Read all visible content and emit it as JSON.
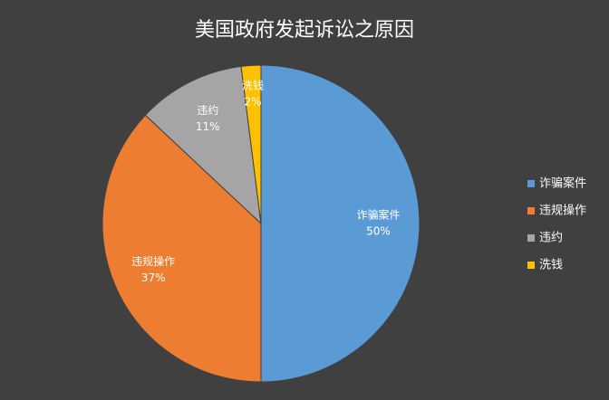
{
  "chart_data": {
    "type": "pie",
    "title": "美国政府发起诉讼之原因",
    "categories": [
      "诈骗案件",
      "违规操作",
      "违约",
      "洗钱"
    ],
    "values": [
      50,
      37,
      11,
      2
    ],
    "value_labels": [
      "50%",
      "37%",
      "11%",
      "2%"
    ],
    "colors": [
      "#5b9bd5",
      "#ed7d31",
      "#a5a5a5",
      "#ffc000"
    ],
    "legend": "right"
  }
}
